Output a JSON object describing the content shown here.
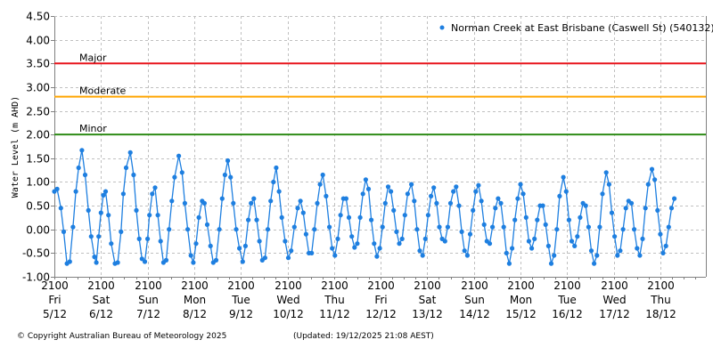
{
  "chart_data": {
    "type": "line",
    "title": "",
    "series_name": "Norman Creek at East Brisbane (Caswell St) (540132)",
    "xlabel": "",
    "ylabel": "Water Level (m AHD)",
    "ylim": [
      -1.0,
      4.5
    ],
    "yticks": [
      "4.50",
      "4.00",
      "3.50",
      "3.00",
      "2.50",
      "2.00",
      "1.50",
      "1.00",
      "0.50",
      "0.00",
      "-0.50",
      "-1.00"
    ],
    "grid": true,
    "legend_position": "top-right",
    "x_ticks": [
      {
        "time": "2100",
        "day": "Fri",
        "date": "5/12"
      },
      {
        "time": "2100",
        "day": "Sat",
        "date": "6/12"
      },
      {
        "time": "2100",
        "day": "Sun",
        "date": "7/12"
      },
      {
        "time": "2100",
        "day": "Mon",
        "date": "8/12"
      },
      {
        "time": "2100",
        "day": "Tue",
        "date": "9/12"
      },
      {
        "time": "2100",
        "day": "Wed",
        "date": "10/12"
      },
      {
        "time": "2100",
        "day": "Thu",
        "date": "11/12"
      },
      {
        "time": "2100",
        "day": "Fri",
        "date": "12/12"
      },
      {
        "time": "2100",
        "day": "Sat",
        "date": "13/12"
      },
      {
        "time": "2100",
        "day": "Sun",
        "date": "14/12"
      },
      {
        "time": "2100",
        "day": "Mon",
        "date": "15/12"
      },
      {
        "time": "2100",
        "day": "Tue",
        "date": "16/12"
      },
      {
        "time": "2100",
        "day": "Wed",
        "date": "17/12"
      },
      {
        "time": "2100",
        "day": "Thu",
        "date": "18/12"
      }
    ],
    "thresholds": [
      {
        "name": "Major",
        "value": 3.5,
        "color": "#e8141c"
      },
      {
        "name": "Moderate",
        "value": 2.8,
        "color": "#ffa500"
      },
      {
        "name": "Minor",
        "value": 2.0,
        "color": "#2e8b16"
      }
    ],
    "series_color": "#1e7fe0",
    "x_unit": "days since Fri 5/12 21:00",
    "points": [
      [
        0.0,
        0.8
      ],
      [
        0.06,
        0.85
      ],
      [
        0.14,
        0.45
      ],
      [
        0.2,
        -0.05
      ],
      [
        0.27,
        -0.72
      ],
      [
        0.33,
        -0.68
      ],
      [
        0.4,
        0.05
      ],
      [
        0.46,
        0.8
      ],
      [
        0.52,
        1.3
      ],
      [
        0.59,
        1.67
      ],
      [
        0.66,
        1.15
      ],
      [
        0.73,
        0.4
      ],
      [
        0.79,
        -0.15
      ],
      [
        0.86,
        -0.58
      ],
      [
        0.9,
        -0.7
      ],
      [
        0.95,
        -0.15
      ],
      [
        1.0,
        0.35
      ],
      [
        1.05,
        0.72
      ],
      [
        1.1,
        0.8
      ],
      [
        1.16,
        0.3
      ],
      [
        1.22,
        -0.3
      ],
      [
        1.3,
        -0.72
      ],
      [
        1.36,
        -0.7
      ],
      [
        1.43,
        -0.05
      ],
      [
        1.48,
        0.75
      ],
      [
        1.54,
        1.3
      ],
      [
        1.63,
        1.62
      ],
      [
        1.7,
        1.15
      ],
      [
        1.76,
        0.4
      ],
      [
        1.82,
        -0.2
      ],
      [
        1.88,
        -0.62
      ],
      [
        1.94,
        -0.68
      ],
      [
        2.0,
        -0.2
      ],
      [
        2.04,
        0.3
      ],
      [
        2.1,
        0.75
      ],
      [
        2.16,
        0.88
      ],
      [
        2.22,
        0.3
      ],
      [
        2.28,
        -0.25
      ],
      [
        2.34,
        -0.7
      ],
      [
        2.4,
        -0.65
      ],
      [
        2.46,
        0.0
      ],
      [
        2.52,
        0.6
      ],
      [
        2.58,
        1.1
      ],
      [
        2.67,
        1.55
      ],
      [
        2.74,
        1.2
      ],
      [
        2.8,
        0.55
      ],
      [
        2.86,
        0.0
      ],
      [
        2.93,
        -0.55
      ],
      [
        2.98,
        -0.7
      ],
      [
        3.04,
        -0.3
      ],
      [
        3.1,
        0.25
      ],
      [
        3.17,
        0.6
      ],
      [
        3.22,
        0.55
      ],
      [
        3.28,
        0.1
      ],
      [
        3.35,
        -0.35
      ],
      [
        3.41,
        -0.7
      ],
      [
        3.47,
        -0.65
      ],
      [
        3.54,
        0.0
      ],
      [
        3.6,
        0.65
      ],
      [
        3.66,
        1.15
      ],
      [
        3.72,
        1.45
      ],
      [
        3.78,
        1.1
      ],
      [
        3.84,
        0.55
      ],
      [
        3.9,
        0.0
      ],
      [
        3.97,
        -0.4
      ],
      [
        4.04,
        -0.68
      ],
      [
        4.1,
        -0.35
      ],
      [
        4.16,
        0.2
      ],
      [
        4.22,
        0.55
      ],
      [
        4.28,
        0.65
      ],
      [
        4.34,
        0.2
      ],
      [
        4.4,
        -0.25
      ],
      [
        4.46,
        -0.65
      ],
      [
        4.52,
        -0.6
      ],
      [
        4.58,
        0.0
      ],
      [
        4.64,
        0.6
      ],
      [
        4.7,
        1.0
      ],
      [
        4.76,
        1.3
      ],
      [
        4.82,
        0.8
      ],
      [
        4.88,
        0.25
      ],
      [
        4.95,
        -0.25
      ],
      [
        5.02,
        -0.6
      ],
      [
        5.08,
        -0.45
      ],
      [
        5.15,
        0.05
      ],
      [
        5.22,
        0.45
      ],
      [
        5.28,
        0.6
      ],
      [
        5.34,
        0.35
      ],
      [
        5.4,
        -0.1
      ],
      [
        5.46,
        -0.5
      ],
      [
        5.52,
        -0.5
      ],
      [
        5.58,
        0.0
      ],
      [
        5.64,
        0.55
      ],
      [
        5.7,
        0.95
      ],
      [
        5.76,
        1.15
      ],
      [
        5.83,
        0.7
      ],
      [
        5.9,
        0.05
      ],
      [
        5.96,
        -0.4
      ],
      [
        6.02,
        -0.55
      ],
      [
        6.08,
        -0.2
      ],
      [
        6.14,
        0.3
      ],
      [
        6.2,
        0.65
      ],
      [
        6.26,
        0.65
      ],
      [
        6.32,
        0.25
      ],
      [
        6.38,
        -0.15
      ],
      [
        6.44,
        -0.38
      ],
      [
        6.5,
        -0.3
      ],
      [
        6.56,
        0.25
      ],
      [
        6.62,
        0.75
      ],
      [
        6.68,
        1.05
      ],
      [
        6.74,
        0.85
      ],
      [
        6.8,
        0.2
      ],
      [
        6.86,
        -0.3
      ],
      [
        6.92,
        -0.57
      ],
      [
        6.98,
        -0.4
      ],
      [
        7.04,
        0.05
      ],
      [
        7.1,
        0.55
      ],
      [
        7.16,
        0.9
      ],
      [
        7.22,
        0.8
      ],
      [
        7.28,
        0.4
      ],
      [
        7.34,
        -0.05
      ],
      [
        7.4,
        -0.3
      ],
      [
        7.46,
        -0.2
      ],
      [
        7.52,
        0.3
      ],
      [
        7.58,
        0.75
      ],
      [
        7.66,
        0.95
      ],
      [
        7.72,
        0.6
      ],
      [
        7.78,
        0.0
      ],
      [
        7.84,
        -0.45
      ],
      [
        7.9,
        -0.55
      ],
      [
        7.96,
        -0.2
      ],
      [
        8.02,
        0.3
      ],
      [
        8.08,
        0.7
      ],
      [
        8.14,
        0.88
      ],
      [
        8.2,
        0.55
      ],
      [
        8.26,
        0.05
      ],
      [
        8.32,
        -0.2
      ],
      [
        8.38,
        -0.25
      ],
      [
        8.44,
        0.05
      ],
      [
        8.5,
        0.55
      ],
      [
        8.56,
        0.8
      ],
      [
        8.62,
        0.9
      ],
      [
        8.68,
        0.5
      ],
      [
        8.74,
        -0.05
      ],
      [
        8.8,
        -0.45
      ],
      [
        8.86,
        -0.55
      ],
      [
        8.92,
        -0.1
      ],
      [
        8.98,
        0.4
      ],
      [
        9.04,
        0.8
      ],
      [
        9.1,
        0.93
      ],
      [
        9.16,
        0.6
      ],
      [
        9.22,
        0.1
      ],
      [
        9.28,
        -0.25
      ],
      [
        9.34,
        -0.3
      ],
      [
        9.4,
        0.05
      ],
      [
        9.46,
        0.45
      ],
      [
        9.52,
        0.65
      ],
      [
        9.58,
        0.55
      ],
      [
        9.64,
        0.05
      ],
      [
        9.7,
        -0.5
      ],
      [
        9.76,
        -0.72
      ],
      [
        9.82,
        -0.4
      ],
      [
        9.88,
        0.2
      ],
      [
        9.94,
        0.65
      ],
      [
        10.0,
        0.95
      ],
      [
        10.06,
        0.75
      ],
      [
        10.12,
        0.25
      ],
      [
        10.18,
        -0.25
      ],
      [
        10.24,
        -0.4
      ],
      [
        10.3,
        -0.2
      ],
      [
        10.36,
        0.2
      ],
      [
        10.42,
        0.5
      ],
      [
        10.48,
        0.5
      ],
      [
        10.54,
        0.1
      ],
      [
        10.6,
        -0.35
      ],
      [
        10.66,
        -0.72
      ],
      [
        10.72,
        -0.55
      ],
      [
        10.78,
        0.0
      ],
      [
        10.84,
        0.7
      ],
      [
        10.92,
        1.1
      ],
      [
        10.98,
        0.8
      ],
      [
        11.04,
        0.2
      ],
      [
        11.1,
        -0.25
      ],
      [
        11.16,
        -0.35
      ],
      [
        11.22,
        -0.15
      ],
      [
        11.28,
        0.25
      ],
      [
        11.34,
        0.55
      ],
      [
        11.4,
        0.5
      ],
      [
        11.46,
        0.05
      ],
      [
        11.52,
        -0.45
      ],
      [
        11.58,
        -0.72
      ],
      [
        11.64,
        -0.55
      ],
      [
        11.7,
        0.05
      ],
      [
        11.76,
        0.75
      ],
      [
        11.84,
        1.2
      ],
      [
        11.9,
        0.95
      ],
      [
        11.96,
        0.35
      ],
      [
        12.02,
        -0.15
      ],
      [
        12.08,
        -0.55
      ],
      [
        12.14,
        -0.45
      ],
      [
        12.2,
        0.0
      ],
      [
        12.26,
        0.45
      ],
      [
        12.32,
        0.6
      ],
      [
        12.38,
        0.55
      ],
      [
        12.44,
        0.0
      ],
      [
        12.5,
        -0.4
      ],
      [
        12.56,
        -0.55
      ],
      [
        12.62,
        -0.2
      ],
      [
        12.68,
        0.45
      ],
      [
        12.74,
        0.95
      ],
      [
        12.82,
        1.27
      ],
      [
        12.88,
        1.05
      ],
      [
        12.94,
        0.4
      ],
      [
        13.0,
        -0.1
      ],
      [
        13.06,
        -0.5
      ],
      [
        13.12,
        -0.35
      ],
      [
        13.18,
        0.05
      ],
      [
        13.24,
        0.45
      ],
      [
        13.3,
        0.65
      ]
    ]
  },
  "legend": {
    "label": "Norman Creek at East Brisbane (Caswell St) (540132)"
  },
  "footer": {
    "copyright": "© Copyright Australian Bureau of Meteorology 2025",
    "updated": "(Updated: 19/12/2025 21:08 AEST)"
  }
}
